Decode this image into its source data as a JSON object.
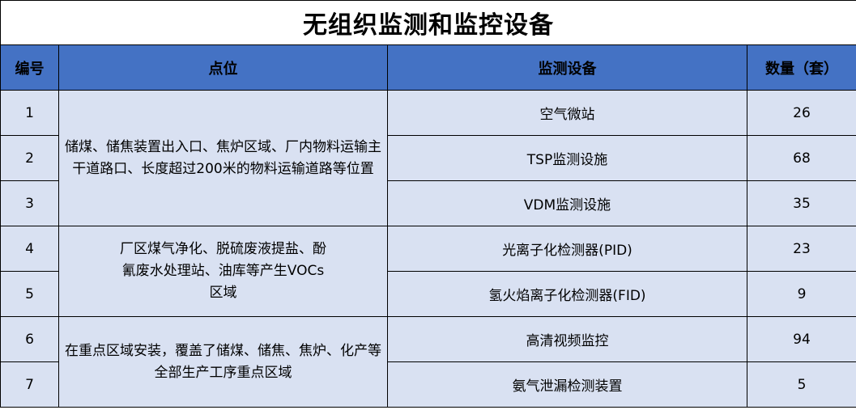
{
  "title": "无组织监测和监控设备",
  "columns": [
    "编号",
    "点位",
    "监测设备",
    "数量（套）"
  ],
  "groups": [
    {
      "location": "储煤、储焦装置出入口、焦炉区域、厂内物料运输主干道路口、长度超过200米的物料运输道路等位置"
    },
    {
      "location": "厂区煤气净化、脱硫废液提盐、酚氰废水处理站、油库等产生VOCs区域"
    },
    {
      "location": "在重点区域安装，覆盖了储煤、储焦、焦炉、化产等全部生产工序重点区域"
    }
  ],
  "rows": [
    {
      "no": "1",
      "device": "空气微站",
      "qty": "26"
    },
    {
      "no": "2",
      "device": "TSP监测设施",
      "qty": "68"
    },
    {
      "no": "3",
      "device": "VDM监测设施",
      "qty": "35"
    },
    {
      "no": "4",
      "device": "光离子化检测器(PID)",
      "qty": "23"
    },
    {
      "no": "5",
      "device": "氢火焰离子化检测器(FID)",
      "qty": "9"
    },
    {
      "no": "6",
      "device": "高清视频监控",
      "qty": "94"
    },
    {
      "no": "7",
      "device": "氨气泄漏检测装置",
      "qty": "5"
    }
  ],
  "colors": {
    "header": "#4472C4",
    "cell": "#D9E1F2"
  }
}
